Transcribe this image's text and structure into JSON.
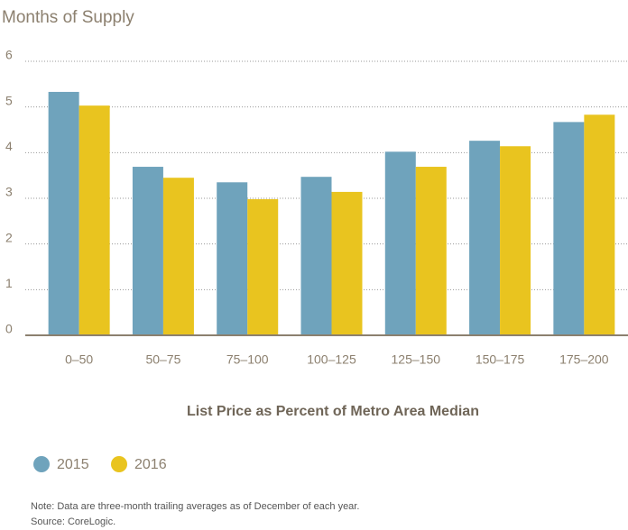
{
  "chart_data": {
    "type": "bar",
    "ylabel": "Months of Supply",
    "xlabel": "List Price as Percent of Metro Area Median",
    "categories": [
      "0–50",
      "50–75",
      "75–100",
      "100–125",
      "125–150",
      "150–175",
      "175–200"
    ],
    "series": [
      {
        "name": "2015",
        "color": "#6fa3bc",
        "values": [
          5.33,
          3.69,
          3.35,
          3.47,
          4.02,
          4.26,
          4.67
        ]
      },
      {
        "name": "2016",
        "color": "#e9c41f",
        "values": [
          5.03,
          3.45,
          2.98,
          3.14,
          3.69,
          4.14,
          4.83
        ]
      }
    ],
    "ylim": [
      0,
      6
    ],
    "yticks": [
      0,
      1,
      2,
      3,
      4,
      5,
      6
    ],
    "grid": true,
    "note": "Note: Data are three-month trailing averages as of December of each year.",
    "source": "Source: CoreLogic."
  }
}
